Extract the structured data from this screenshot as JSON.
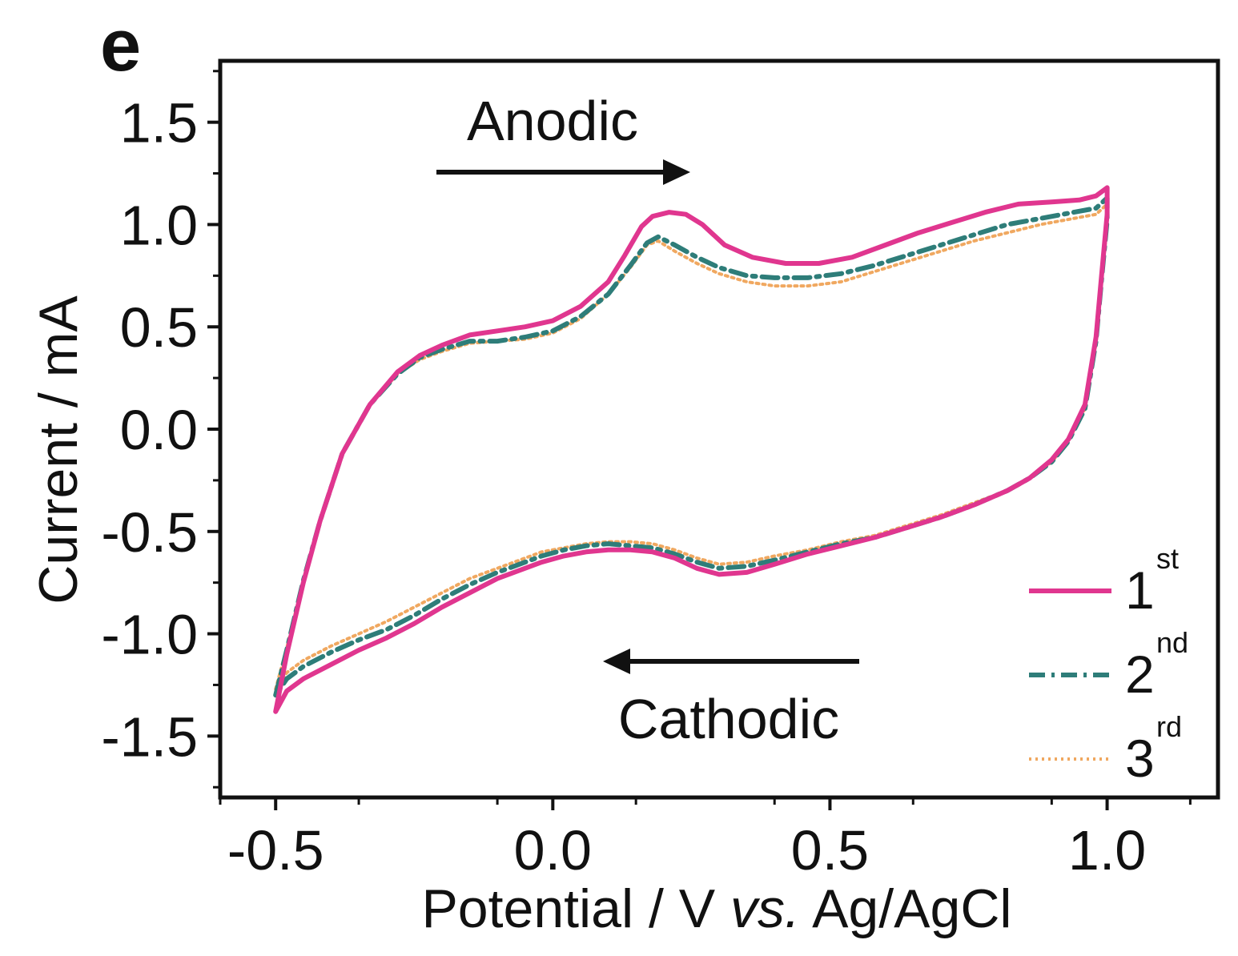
{
  "panel_label": "e",
  "colors": {
    "series_1": "#e0368f",
    "series_2": "#2e7d79",
    "series_3": "#f0a860",
    "axis": "#111111"
  },
  "annotations": {
    "anodic": "Anodic",
    "cathodic": "Cathodic"
  },
  "chart_data": {
    "type": "line",
    "title": "",
    "xlabel": "Potential / V",
    "xlabel_italic": "vs.",
    "xlabel_tail": "Ag/AgCl",
    "ylabel": "Current / mA",
    "xlim": [
      -0.6,
      1.2
    ],
    "ylim": [
      -1.8,
      1.8
    ],
    "xticks": [
      -0.5,
      0.0,
      0.5,
      1.0
    ],
    "xtick_labels": [
      "-0.5",
      "0.0",
      "0.5",
      "1.0"
    ],
    "yticks": [
      -1.5,
      -1.0,
      -0.5,
      0.0,
      0.5,
      1.0,
      1.5
    ],
    "ytick_labels": [
      "-1.5",
      "-1.0",
      "-0.5",
      "0.0",
      "0.5",
      "1.0",
      "1.5"
    ],
    "grid": false,
    "legend_position": "bottom-right",
    "series": [
      {
        "name": "1",
        "name_sup": "st",
        "style": "solid",
        "x": [
          -0.5,
          -0.48,
          -0.45,
          -0.42,
          -0.38,
          -0.33,
          -0.28,
          -0.24,
          -0.2,
          -0.15,
          -0.1,
          -0.05,
          0.0,
          0.05,
          0.1,
          0.13,
          0.16,
          0.18,
          0.21,
          0.24,
          0.27,
          0.31,
          0.36,
          0.42,
          0.48,
          0.54,
          0.6,
          0.66,
          0.72,
          0.78,
          0.84,
          0.9,
          0.95,
          0.98,
          1.0,
          1.0,
          0.99,
          0.98,
          0.96,
          0.93,
          0.9,
          0.86,
          0.82,
          0.76,
          0.7,
          0.64,
          0.58,
          0.52,
          0.46,
          0.4,
          0.35,
          0.3,
          0.26,
          0.22,
          0.18,
          0.14,
          0.1,
          0.06,
          0.02,
          -0.02,
          -0.06,
          -0.1,
          -0.15,
          -0.2,
          -0.25,
          -0.3,
          -0.35,
          -0.4,
          -0.45,
          -0.48,
          -0.5
        ],
        "y": [
          -1.38,
          -1.1,
          -0.75,
          -0.45,
          -0.12,
          0.12,
          0.28,
          0.36,
          0.41,
          0.46,
          0.48,
          0.5,
          0.53,
          0.6,
          0.72,
          0.85,
          0.99,
          1.04,
          1.06,
          1.05,
          1.0,
          0.9,
          0.84,
          0.81,
          0.81,
          0.84,
          0.9,
          0.96,
          1.01,
          1.06,
          1.1,
          1.11,
          1.12,
          1.14,
          1.18,
          1.05,
          0.75,
          0.45,
          0.12,
          -0.05,
          -0.15,
          -0.24,
          -0.3,
          -0.37,
          -0.43,
          -0.48,
          -0.53,
          -0.57,
          -0.61,
          -0.66,
          -0.7,
          -0.71,
          -0.68,
          -0.63,
          -0.6,
          -0.59,
          -0.59,
          -0.6,
          -0.62,
          -0.65,
          -0.69,
          -0.73,
          -0.8,
          -0.87,
          -0.95,
          -1.02,
          -1.08,
          -1.15,
          -1.22,
          -1.28,
          -1.38
        ]
      },
      {
        "name": "2",
        "name_sup": "nd",
        "style": "dashdot",
        "x": [
          -0.5,
          -0.48,
          -0.45,
          -0.42,
          -0.38,
          -0.33,
          -0.28,
          -0.24,
          -0.2,
          -0.15,
          -0.1,
          -0.05,
          0.0,
          0.05,
          0.1,
          0.14,
          0.17,
          0.19,
          0.22,
          0.26,
          0.3,
          0.35,
          0.4,
          0.46,
          0.52,
          0.58,
          0.64,
          0.7,
          0.76,
          0.82,
          0.88,
          0.94,
          0.98,
          1.0,
          1.0,
          0.99,
          0.98,
          0.96,
          0.93,
          0.9,
          0.86,
          0.82,
          0.76,
          0.7,
          0.64,
          0.58,
          0.52,
          0.46,
          0.4,
          0.35,
          0.3,
          0.26,
          0.22,
          0.18,
          0.14,
          0.1,
          0.06,
          0.02,
          -0.02,
          -0.06,
          -0.1,
          -0.15,
          -0.2,
          -0.25,
          -0.3,
          -0.35,
          -0.4,
          -0.45,
          -0.48,
          -0.5
        ],
        "y": [
          -1.3,
          -1.08,
          -0.74,
          -0.45,
          -0.12,
          0.12,
          0.27,
          0.35,
          0.39,
          0.43,
          0.43,
          0.45,
          0.48,
          0.55,
          0.66,
          0.8,
          0.91,
          0.94,
          0.9,
          0.84,
          0.79,
          0.75,
          0.74,
          0.74,
          0.76,
          0.8,
          0.85,
          0.9,
          0.95,
          1.0,
          1.03,
          1.06,
          1.08,
          1.13,
          1.02,
          0.73,
          0.43,
          0.1,
          -0.06,
          -0.16,
          -0.24,
          -0.3,
          -0.37,
          -0.43,
          -0.48,
          -0.53,
          -0.56,
          -0.6,
          -0.64,
          -0.67,
          -0.68,
          -0.65,
          -0.61,
          -0.58,
          -0.57,
          -0.56,
          -0.57,
          -0.59,
          -0.62,
          -0.66,
          -0.7,
          -0.76,
          -0.83,
          -0.91,
          -0.98,
          -1.03,
          -1.09,
          -1.16,
          -1.22,
          -1.3
        ]
      },
      {
        "name": "3",
        "name_sup": "rd",
        "style": "dotted",
        "x": [
          -0.5,
          -0.48,
          -0.45,
          -0.42,
          -0.38,
          -0.33,
          -0.28,
          -0.24,
          -0.2,
          -0.15,
          -0.1,
          -0.05,
          0.0,
          0.05,
          0.1,
          0.14,
          0.17,
          0.19,
          0.22,
          0.26,
          0.3,
          0.35,
          0.4,
          0.46,
          0.52,
          0.58,
          0.64,
          0.7,
          0.76,
          0.82,
          0.88,
          0.94,
          0.98,
          1.0,
          1.0,
          0.99,
          0.98,
          0.96,
          0.93,
          0.9,
          0.86,
          0.82,
          0.76,
          0.7,
          0.64,
          0.58,
          0.52,
          0.46,
          0.4,
          0.35,
          0.3,
          0.26,
          0.22,
          0.18,
          0.14,
          0.1,
          0.06,
          0.02,
          -0.02,
          -0.06,
          -0.1,
          -0.15,
          -0.2,
          -0.25,
          -0.3,
          -0.35,
          -0.4,
          -0.45,
          -0.48,
          -0.5
        ],
        "y": [
          -1.27,
          -1.07,
          -0.74,
          -0.45,
          -0.12,
          0.12,
          0.27,
          0.34,
          0.38,
          0.42,
          0.43,
          0.44,
          0.47,
          0.54,
          0.66,
          0.79,
          0.9,
          0.92,
          0.87,
          0.81,
          0.76,
          0.72,
          0.7,
          0.7,
          0.72,
          0.77,
          0.82,
          0.87,
          0.92,
          0.96,
          1.0,
          1.03,
          1.05,
          1.1,
          1.0,
          0.72,
          0.42,
          0.1,
          -0.06,
          -0.16,
          -0.24,
          -0.3,
          -0.36,
          -0.42,
          -0.47,
          -0.52,
          -0.55,
          -0.59,
          -0.62,
          -0.65,
          -0.66,
          -0.63,
          -0.59,
          -0.56,
          -0.55,
          -0.55,
          -0.56,
          -0.58,
          -0.6,
          -0.64,
          -0.68,
          -0.73,
          -0.8,
          -0.87,
          -0.94,
          -1.0,
          -1.06,
          -1.13,
          -1.19,
          -1.27
        ]
      }
    ]
  }
}
